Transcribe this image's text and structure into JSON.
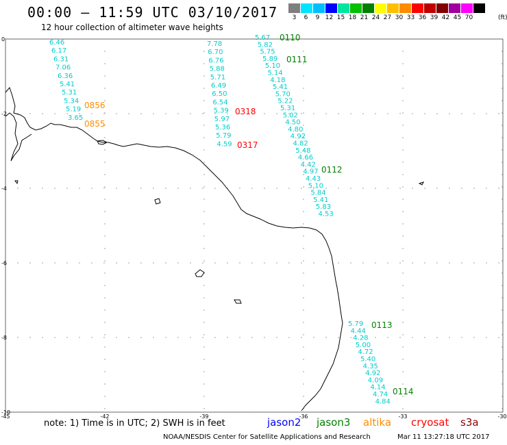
{
  "header": {
    "title": "00:00 – 11:59 UTC 03/10/2017",
    "subtitle": "12 hour collection of altimeter wave heights"
  },
  "legend": {
    "unit": "(ft)",
    "bins": [
      {
        "label": "3",
        "color": "#7f7f7f"
      },
      {
        "label": "6",
        "color": "#00e5ff"
      },
      {
        "label": "9",
        "color": "#00bfff"
      },
      {
        "label": "12",
        "color": "#0000ff"
      },
      {
        "label": "15",
        "color": "#00e5a0"
      },
      {
        "label": "18",
        "color": "#00c000"
      },
      {
        "label": "21",
        "color": "#008000"
      },
      {
        "label": "24",
        "color": "#ffff00"
      },
      {
        "label": "27",
        "color": "#ffc000"
      },
      {
        "label": "30",
        "color": "#ff8c00"
      },
      {
        "label": "33",
        "color": "#ff0000"
      },
      {
        "label": "36",
        "color": "#c00000"
      },
      {
        "label": "39",
        "color": "#800000"
      },
      {
        "label": "42",
        "color": "#a000a0"
      },
      {
        "label": "45",
        "color": "#ff00ff"
      },
      {
        "label": "70",
        "color": "#000000"
      }
    ]
  },
  "axes": {
    "x_ticks": [
      "-45",
      "-42",
      "-39",
      "-36",
      "-33",
      "-30"
    ],
    "y_ticks": [
      "0",
      "-2",
      "-4",
      "-6",
      "-8",
      "-10"
    ]
  },
  "passes": [
    {
      "id": "0856",
      "color": "#ff8c00"
    },
    {
      "id": "0855",
      "color": "#ff8c00"
    },
    {
      "id": "0318",
      "color": "#ff0000"
    },
    {
      "id": "0317",
      "color": "#ff0000"
    },
    {
      "id": "0110",
      "color": "#008000"
    },
    {
      "id": "0111",
      "color": "#008000"
    },
    {
      "id": "0112",
      "color": "#008000"
    },
    {
      "id": "0113",
      "color": "#008000"
    },
    {
      "id": "0114",
      "color": "#008000"
    }
  ],
  "tracks": [
    {
      "values": [
        "6.46",
        "6.17",
        "6.31",
        "7.06",
        "6.36",
        "5.41",
        "5.31",
        "5.34",
        "5.19",
        "3.65"
      ]
    },
    {
      "values": [
        "7.78",
        "6.70",
        "6.76",
        "5.88",
        "5.71",
        "6.49",
        "6.50",
        "6.54",
        "5.39",
        "5.97",
        "5.36",
        "5.79",
        "4.59"
      ]
    },
    {
      "values": [
        "5.67",
        "5.82",
        "5.75",
        "5.89",
        "5.10",
        "5.14",
        "4.18",
        "5.41",
        "5.70",
        "5.22",
        "5.31",
        "5.02",
        "4.50",
        "4.80",
        "4.92",
        "4.82",
        "5.48",
        "4.66",
        "4.42",
        "4.97",
        "4.43",
        "5.10",
        "5.84",
        "5.41",
        "5.83",
        "4.53"
      ]
    },
    {
      "values": [
        "5.79",
        "4.44",
        "4.28",
        "5.00",
        "4.72",
        "5.40",
        "4.35",
        "4.92",
        "4.09",
        "4.14",
        "4.74",
        "4.84"
      ]
    }
  ],
  "note": "note: 1) Time is in UTC; 2) SWH is in feet",
  "satellites": [
    {
      "name": "jason2",
      "color": "#0000ff"
    },
    {
      "name": "jason3",
      "color": "#008000"
    },
    {
      "name": "altika",
      "color": "#ff8c00"
    },
    {
      "name": "cryosat",
      "color": "#ff0000"
    },
    {
      "name": "s3a",
      "color": "#8b0000"
    }
  ],
  "footer": {
    "credit": "NOAA/NESDIS Center for Satellite Applications and Research",
    "timestamp": "Mar 11 13:27:18 UTC 2017"
  }
}
